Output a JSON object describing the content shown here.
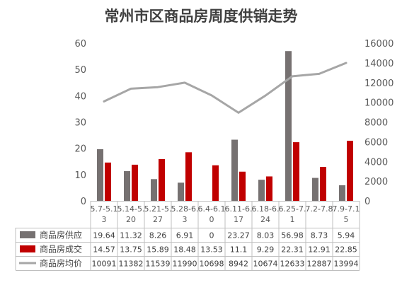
{
  "chart_data": {
    "type": "bar",
    "title": "常州市区商品房周度供销走势",
    "categories": [
      [
        "5.7-5.1",
        "3"
      ],
      [
        "5.14-5.",
        "20"
      ],
      [
        "5.21-5.",
        "27"
      ],
      [
        "5.28-6.",
        "3"
      ],
      [
        "6.4-6.1",
        "0"
      ],
      [
        "6.11-6.",
        "17"
      ],
      [
        "6.18-6.",
        "24"
      ],
      [
        "6.25-7.",
        "1"
      ],
      [
        "7.2-7.8",
        ""
      ],
      [
        "7.9-7.1",
        "5"
      ]
    ],
    "series": [
      {
        "name": "商品房供应",
        "kind": "bar",
        "axis": "left",
        "color": "#767171",
        "values": [
          19.64,
          11.32,
          8.26,
          6.91,
          0,
          23.27,
          8.03,
          56.98,
          8.73,
          5.94
        ],
        "labels": [
          "19.64",
          "11.32",
          "8.26",
          "6.91",
          "0",
          "23.27",
          "8.03",
          "56.98",
          "8.73",
          "5.94"
        ]
      },
      {
        "name": "商品房成交",
        "kind": "bar",
        "axis": "left",
        "color": "#c00000",
        "values": [
          14.57,
          13.75,
          15.89,
          18.48,
          13.53,
          11.1,
          9.29,
          22.31,
          12.91,
          22.85
        ],
        "labels": [
          "14.57",
          "13.75",
          "15.89",
          "18.48",
          "13.53",
          "11.1",
          "9.29",
          "22.31",
          "12.91",
          "22.85"
        ]
      },
      {
        "name": "商品房均价",
        "kind": "line",
        "axis": "right",
        "color": "#a6a6a6",
        "values": [
          10091,
          11382,
          11539,
          11990,
          10698,
          8942,
          10674,
          12633,
          12887,
          13994
        ],
        "labels": [
          "10091",
          "11382",
          "11539",
          "11990",
          "10698",
          "8942",
          "10674",
          "12633",
          "12887",
          "13994"
        ]
      }
    ],
    "y_left": {
      "min": 0,
      "max": 60,
      "ticks": [
        "0",
        "10",
        "20",
        "30",
        "40",
        "50",
        "60"
      ]
    },
    "y_right": {
      "min": 0,
      "max": 16000,
      "ticks": [
        "0",
        "2000",
        "4000",
        "6000",
        "8000",
        "10000",
        "12000",
        "14000",
        "16000"
      ]
    },
    "grid": false,
    "legend": "data-table"
  }
}
